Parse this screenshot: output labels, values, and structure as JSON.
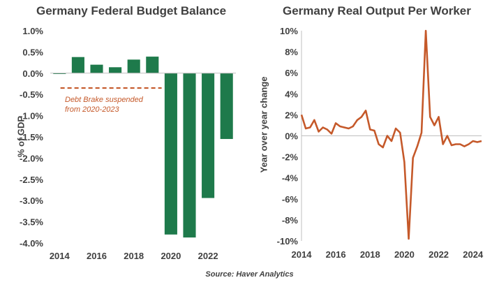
{
  "chart_data": [
    {
      "type": "bar",
      "title": "Germany Federal Budget Balance",
      "xlabel": "",
      "ylabel": "% of GDP",
      "categories": [
        "2014",
        "2015",
        "2016",
        "2017",
        "2018",
        "2019",
        "2020",
        "2021",
        "2022",
        "2023"
      ],
      "x_tick_labels": [
        "2014",
        "2016",
        "2018",
        "2020",
        "2022"
      ],
      "values": [
        0.0,
        0.38,
        0.2,
        0.14,
        0.32,
        0.39,
        -3.8,
        -3.87,
        -2.94,
        -1.55
      ],
      "ylim": [
        -4.0,
        1.0
      ],
      "y_tick_labels": [
        "1.0%",
        "0.5%",
        "0.0%",
        "-0.5%",
        "-1.0%",
        "-1.5%",
        "-2.0%",
        "-2.5%",
        "-3.0%",
        "-3.5%",
        "-4.0%"
      ],
      "reference_line": {
        "value": -0.35,
        "style": "dashed"
      },
      "annotation": [
        "Debt Brake suspended",
        "from 2020-2023"
      ],
      "bar_color": "#1e7a4b",
      "line_color": "#c5592a"
    },
    {
      "type": "line",
      "title": "Germany Real Output Per Worker",
      "xlabel": "",
      "ylabel": "Year over year change",
      "xlim": [
        2014.0,
        2024.5
      ],
      "ylim": [
        -10,
        10
      ],
      "x_tick_labels": [
        "2014",
        "2016",
        "2018",
        "2020",
        "2022",
        "2024"
      ],
      "y_tick_labels": [
        "10%",
        "8%",
        "6%",
        "4%",
        "2%",
        "0%",
        "-2%",
        "-4%",
        "-6%",
        "-8%",
        "-10%"
      ],
      "line_color": "#c5592a",
      "x": [
        2014.0,
        2014.25,
        2014.5,
        2014.75,
        2015.0,
        2015.25,
        2015.5,
        2015.75,
        2016.0,
        2016.25,
        2016.5,
        2016.75,
        2017.0,
        2017.25,
        2017.5,
        2017.75,
        2018.0,
        2018.25,
        2018.5,
        2018.75,
        2019.0,
        2019.25,
        2019.5,
        2019.75,
        2020.0,
        2020.25,
        2020.5,
        2020.75,
        2021.0,
        2021.25,
        2021.5,
        2021.75,
        2022.0,
        2022.25,
        2022.5,
        2022.75,
        2023.0,
        2023.25,
        2023.5,
        2023.75,
        2024.0,
        2024.25,
        2024.5
      ],
      "values": [
        2.0,
        0.7,
        0.8,
        1.5,
        0.4,
        0.8,
        0.6,
        0.2,
        1.2,
        0.9,
        0.8,
        0.7,
        0.9,
        1.5,
        1.8,
        2.4,
        0.6,
        0.5,
        -0.8,
        -1.1,
        0.0,
        -0.5,
        0.7,
        0.3,
        -2.5,
        -9.8,
        -2.1,
        -1.0,
        0.3,
        10.0,
        1.8,
        1.0,
        1.8,
        -0.8,
        0.0,
        -0.9,
        -0.8,
        -0.8,
        -1.0,
        -0.8,
        -0.5,
        -0.6,
        -0.5
      ]
    }
  ],
  "source": "Source: Haver Analytics"
}
